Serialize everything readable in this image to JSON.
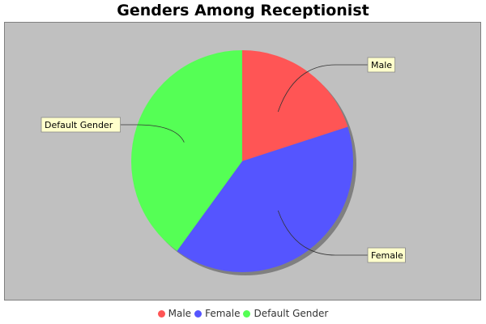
{
  "chart_data": {
    "type": "pie",
    "title": "Genders Among Receptionist",
    "slices": [
      {
        "label": "Male",
        "value": 20,
        "color": "#ff5555"
      },
      {
        "label": "Female",
        "value": 40,
        "color": "#5555ff"
      },
      {
        "label": "Default Gender",
        "value": 40,
        "color": "#55ff55"
      }
    ],
    "legend_placement": "bottom",
    "plot_background": "#c0c0c0"
  }
}
